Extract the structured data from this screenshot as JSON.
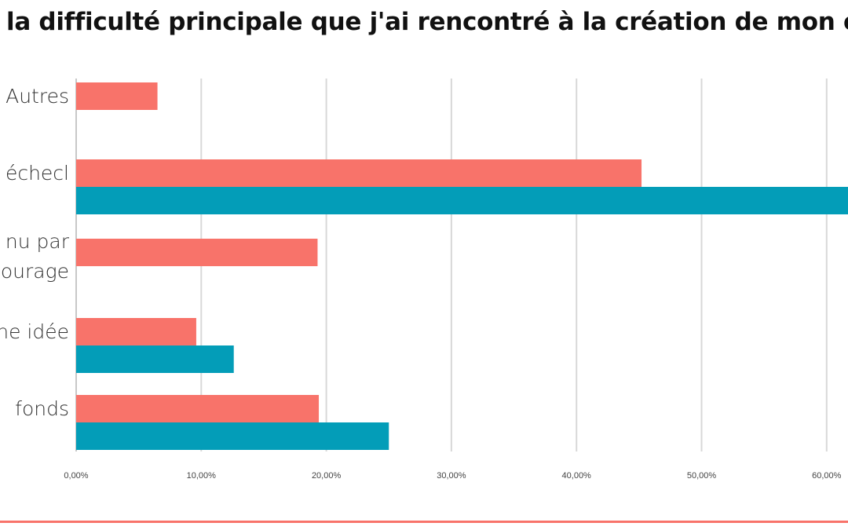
{
  "chart_data": {
    "type": "bar",
    "orientation": "horizontal",
    "title": "la difficulté principale que j'ai rencontré à la création de mon e",
    "categories": [
      "Autres",
      "échecl",
      "nu par|ourage",
      "ne idée",
      "fonds"
    ],
    "series": [
      {
        "color": "#f8736a",
        "values": [
          6.5,
          45.2,
          19.3,
          9.6,
          19.4
        ]
      },
      {
        "color": "#039db8",
        "values": [
          0,
          62.0,
          0,
          12.6,
          25.0
        ]
      }
    ],
    "xlim": [
      0,
      62.5
    ],
    "xticks": [
      0,
      10,
      20,
      30,
      40,
      50,
      60
    ],
    "xtick_labels": [
      "0,00%",
      "10,00%",
      "20,00%",
      "30,00%",
      "40,00%",
      "50,00%",
      "60,00%"
    ],
    "grid": "vertical",
    "legend": "none"
  },
  "colors": {
    "grid": "#d8d8d8",
    "axis": "#c8c8c8",
    "footer_rule": "#f8736a"
  }
}
